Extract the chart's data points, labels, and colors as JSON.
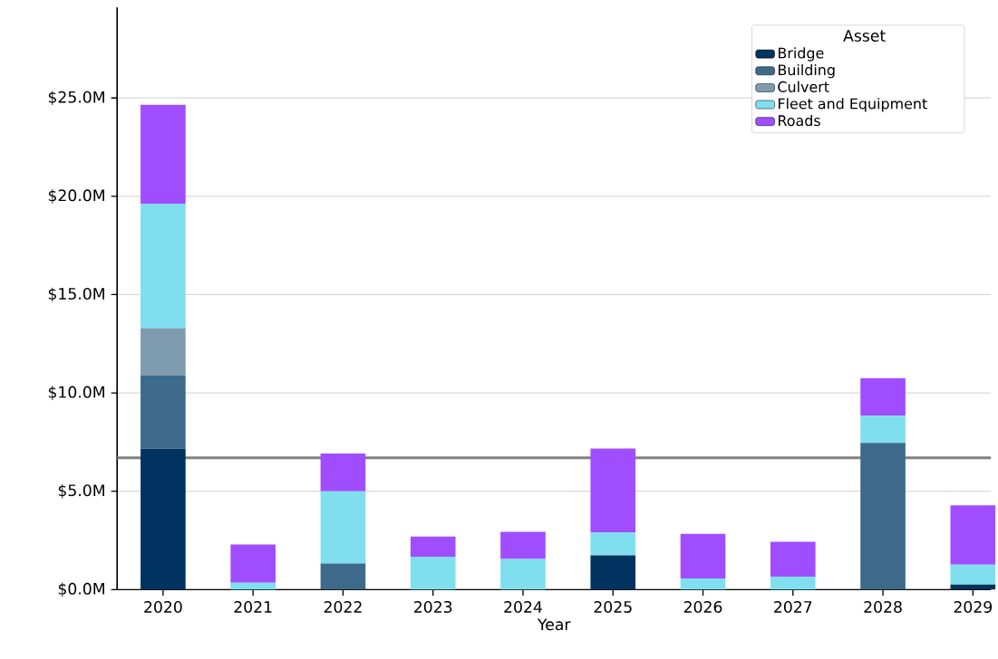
{
  "chart_data": {
    "type": "bar",
    "stacked": true,
    "xlabel": "Year",
    "legend_title": "Asset",
    "legend": "top right",
    "grid": "y",
    "categories": [
      "2020",
      "2021",
      "2022",
      "2023",
      "2024",
      "2025",
      "2026",
      "2027",
      "2028",
      "2029"
    ],
    "series": [
      {
        "name": "Bridge",
        "color": "#00335f",
        "values": [
          7.16,
          0,
          0,
          0,
          0,
          1.74,
          0,
          0,
          0,
          0.26
        ]
      },
      {
        "name": "Building",
        "color": "#3d6a8a",
        "values": [
          3.74,
          0,
          1.33,
          0,
          0,
          0,
          0,
          0,
          7.46,
          0
        ]
      },
      {
        "name": "Culvert",
        "color": "#7f9bb0",
        "values": [
          2.39,
          0,
          0,
          0,
          0,
          0,
          0,
          0,
          0,
          0
        ]
      },
      {
        "name": "Fleet and Equipment",
        "color": "#7fdfee",
        "values": [
          6.33,
          0.35,
          3.67,
          1.67,
          1.56,
          1.18,
          0.57,
          0.66,
          1.38,
          1.01
        ]
      },
      {
        "name": "Roads",
        "color": "#a04dff",
        "values": [
          5.03,
          1.94,
          1.92,
          1.03,
          1.38,
          4.25,
          2.26,
          1.77,
          1.91,
          3.01
        ]
      }
    ],
    "ylim": [
      0,
      29.6
    ],
    "yticks": [
      {
        "value": 0,
        "label": "$0.0M"
      },
      {
        "value": 5,
        "label": "$5.0M"
      },
      {
        "value": 10,
        "label": "$10.0M"
      },
      {
        "value": 15,
        "label": "$15.0M"
      },
      {
        "value": 20,
        "label": "$20.0M"
      },
      {
        "value": 25,
        "label": "$25.0M"
      }
    ],
    "ref_lines": [
      {
        "axis": "y",
        "value": 6.7,
        "color": "#808080"
      }
    ]
  }
}
